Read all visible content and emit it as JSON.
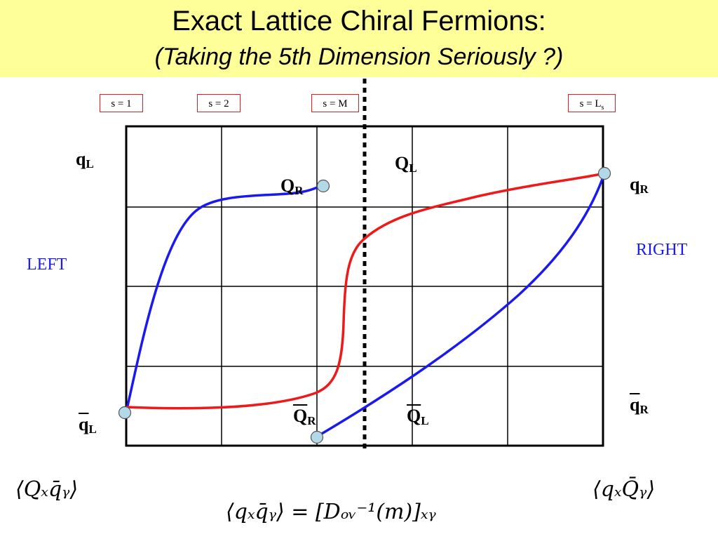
{
  "header": {
    "title": "Exact Lattice Chiral Fermions:",
    "subtitle": "(Taking the 5th Dimension Seriously ?)"
  },
  "slice_labels": {
    "s1": "s = 1",
    "s2": "s = 2",
    "sM": "s = M",
    "sLs_base": "s = L",
    "sLs_sub": "s"
  },
  "labels": {
    "qL_top": {
      "base": "q",
      "sub": "L"
    },
    "QL_top": {
      "base": "Q",
      "sub": "L"
    },
    "QR_top": {
      "base": "Q",
      "sub": "R"
    },
    "qR_top": {
      "base": "q",
      "sub": "R"
    },
    "qbarL": {
      "base": "q",
      "sub": "L"
    },
    "QbarR": {
      "base": "Q",
      "sub": "R"
    },
    "QbarL": {
      "base": "Q",
      "sub": "L"
    },
    "qbarR": {
      "base": "q",
      "sub": "R"
    }
  },
  "sides": {
    "left": "LEFT",
    "right": "RIGHT"
  },
  "formulas": {
    "left": "⟨Qₓq̄ᵧ⟩",
    "right": "⟨qₓQ̄ᵧ⟩",
    "bottom": "⟨qₓq̄ᵧ⟩ = [Dₒᵥ⁻¹(m)]ₓᵧ"
  },
  "colors": {
    "header_bg": "#ffff99",
    "blue_curve": "#1a1aee",
    "red_curve": "#ee1a1a",
    "endpoint": "#b3d9e8",
    "side_label": "#1a1aee",
    "slice_border": "#e02020"
  }
}
